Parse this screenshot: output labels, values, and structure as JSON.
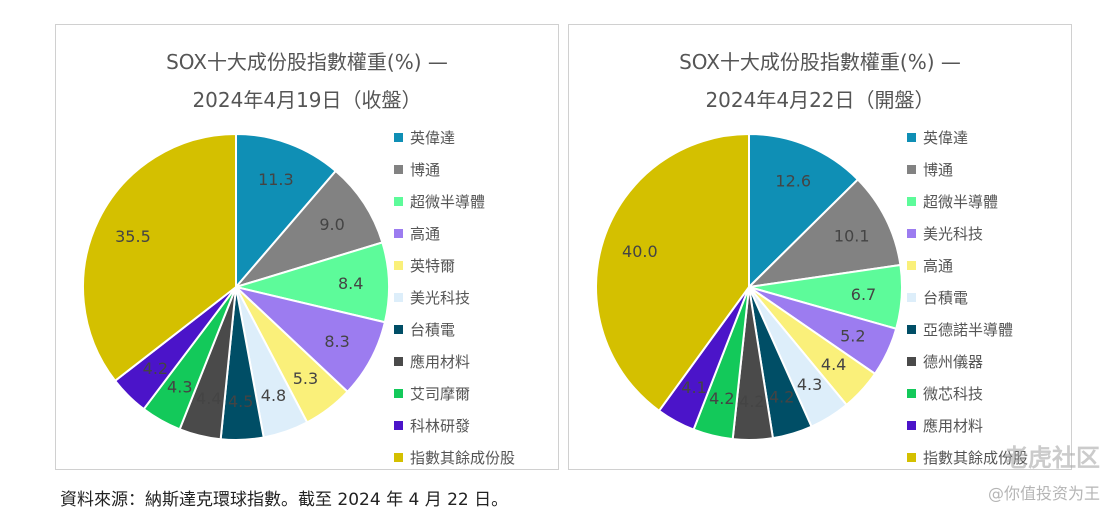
{
  "chart_data": [
    {
      "type": "pie",
      "title": [
        "SOX十大成份股指數權重(%) —",
        "2024年4月19日（收盤）"
      ],
      "slices": [
        {
          "label": "英偉達",
          "value": 11.3,
          "color": "#0F8FB5"
        },
        {
          "label": "博通",
          "value": 9.0,
          "color": "#828282"
        },
        {
          "label": "超微半導體",
          "value": 8.4,
          "color": "#5DFB9A"
        },
        {
          "label": "高通",
          "value": 8.3,
          "color": "#9C7CF0"
        },
        {
          "label": "英特爾",
          "value": 5.3,
          "color": "#FAF07A"
        },
        {
          "label": "美光科技",
          "value": 4.8,
          "color": "#DDEEFA"
        },
        {
          "label": "台積電",
          "value": 4.5,
          "color": "#004E66"
        },
        {
          "label": "應用材料",
          "value": 4.4,
          "color": "#4A4A4A"
        },
        {
          "label": "艾司摩爾",
          "value": 4.3,
          "color": "#13C95A"
        },
        {
          "label": "科林研發",
          "value": 4.2,
          "color": "#4B14C9"
        },
        {
          "label": "指數其餘成份股",
          "value": 35.5,
          "color": "#D4C000"
        }
      ]
    },
    {
      "type": "pie",
      "title": [
        "SOX十大成份股指數權重(%) —",
        "2024年4月22日（開盤）"
      ],
      "slices": [
        {
          "label": "英偉達",
          "value": 12.6,
          "color": "#0F8FB5"
        },
        {
          "label": "博通",
          "value": 10.1,
          "color": "#828282"
        },
        {
          "label": "超微半導體",
          "value": 6.7,
          "color": "#5DFB9A"
        },
        {
          "label": "美光科技",
          "value": 5.2,
          "color": "#9C7CF0"
        },
        {
          "label": "高通",
          "value": 4.4,
          "color": "#FAF07A"
        },
        {
          "label": "台積電",
          "value": 4.3,
          "color": "#DDEEFA"
        },
        {
          "label": "亞德諾半導體",
          "value": 4.2,
          "color": "#004E66"
        },
        {
          "label": "德州儀器",
          "value": 4.2,
          "color": "#4A4A4A"
        },
        {
          "label": "微芯科技",
          "value": 4.2,
          "color": "#13C95A"
        },
        {
          "label": "應用材料",
          "value": 4.1,
          "color": "#4B14C9"
        },
        {
          "label": "指數其餘成份股",
          "value": 40.0,
          "color": "#D4C000"
        }
      ]
    }
  ],
  "source_note": "資料來源：納斯達克環球指數。截至 2024 年 4 月 22 日。",
  "watermark": {
    "line1": "老虎社区",
    "line2": "@你值投资为王"
  }
}
